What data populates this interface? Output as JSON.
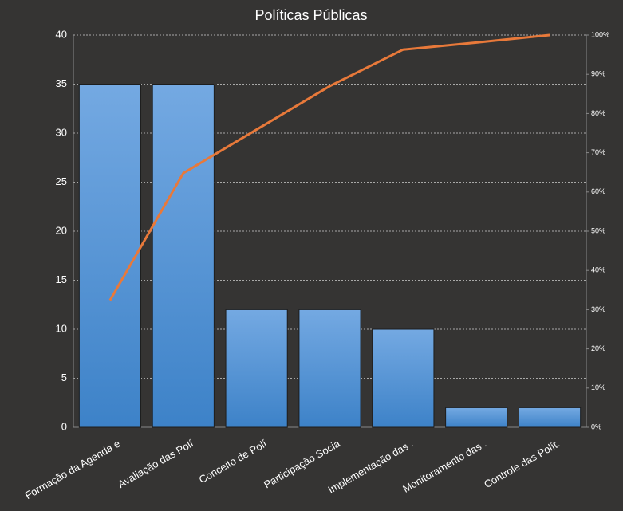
{
  "chart_data": {
    "type": "pareto",
    "title": "Políticas Públicas",
    "categories": [
      "Formação da Agenda e",
      "Avaliação das Polí",
      "Conceito de Polí",
      "Participação Socia",
      "Implementação das .",
      "Monitoramento  das  .",
      "Controle das Polít."
    ],
    "series": [
      {
        "type": "bar",
        "color": "#4a8fd6",
        "values": [
          35,
          35,
          12,
          12,
          10,
          2,
          2
        ]
      },
      {
        "type": "line",
        "axis": "y2",
        "color": "#e8793a",
        "values": [
          32.4,
          64.8,
          75.9,
          87.0,
          96.3,
          98.1,
          100
        ]
      }
    ],
    "ylim": [
      0,
      40
    ],
    "yticks": [
      0,
      5,
      10,
      15,
      20,
      25,
      30,
      35,
      40
    ],
    "y2lim": [
      0,
      100
    ],
    "y2ticks": [
      {
        "value": 0,
        "label": "0%"
      },
      {
        "value": 10,
        "label": "10%"
      },
      {
        "value": 20,
        "label": "20%"
      },
      {
        "value": 30,
        "label": "30%"
      },
      {
        "value": 40,
        "label": "40%"
      },
      {
        "value": 50,
        "label": "50%"
      },
      {
        "value": 60,
        "label": "60%"
      },
      {
        "value": 70,
        "label": "70%"
      },
      {
        "value": 80,
        "label": "80%"
      },
      {
        "value": 90,
        "label": "90%"
      },
      {
        "value": 100,
        "label": "100%"
      }
    ],
    "grid": true
  }
}
